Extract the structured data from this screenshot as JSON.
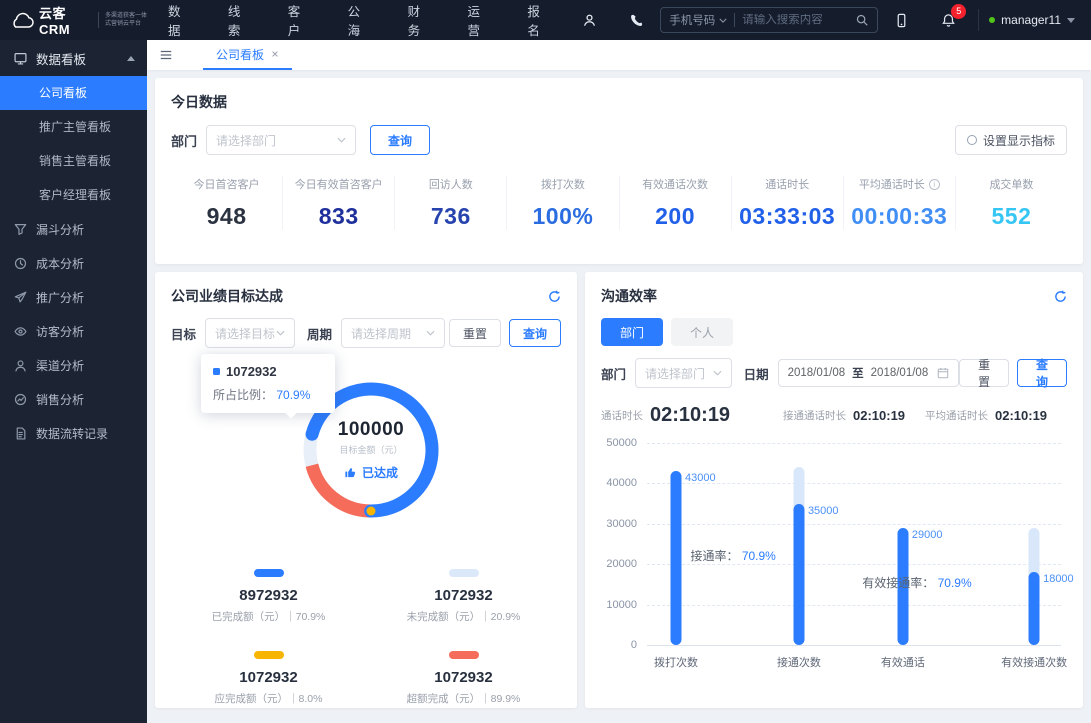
{
  "colors": {
    "accent": "#2b7cff",
    "badge_red": "#f5222d",
    "online_green": "#52c41a"
  },
  "brand": {
    "name": "云客CRM",
    "tagline_line1": "多渠道获客一体",
    "tagline_line2": "式营销云平台"
  },
  "nav": {
    "menu": [
      "数据",
      "线索",
      "客户",
      "公海",
      "财务",
      "运营",
      "报名"
    ],
    "search_category": "手机号码",
    "search_placeholder": "请输入搜索内容",
    "notification_count": "5",
    "username": "manager11"
  },
  "sidebar": {
    "group_label": "数据看板",
    "sub_items": [
      {
        "label": "公司看板",
        "active": true
      },
      {
        "label": "推广主管看板",
        "active": false
      },
      {
        "label": "销售主管看板",
        "active": false
      },
      {
        "label": "客户经理看板",
        "active": false
      }
    ],
    "items": [
      {
        "label": "漏斗分析",
        "icon": "funnel-icon"
      },
      {
        "label": "成本分析",
        "icon": "clock-icon"
      },
      {
        "label": "推广分析",
        "icon": "promote-icon"
      },
      {
        "label": "访客分析",
        "icon": "visitor-icon"
      },
      {
        "label": "渠道分析",
        "icon": "channel-icon"
      },
      {
        "label": "销售分析",
        "icon": "sales-icon"
      },
      {
        "label": "数据流转记录",
        "icon": "record-icon"
      }
    ]
  },
  "tabbar": {
    "active_tab": "公司看板"
  },
  "today": {
    "title": "今日数据",
    "dept_label": "部门",
    "dept_placeholder": "请选择部门",
    "query_label": "查询",
    "settings_label": "设置显示指标",
    "stats": [
      {
        "label": "今日首咨客户",
        "value": "948",
        "color": "#2b3240",
        "info": false
      },
      {
        "label": "今日有效首咨客户",
        "value": "833",
        "color": "#1f2f9c",
        "info": false
      },
      {
        "label": "回访人数",
        "value": "736",
        "color": "#2743ae",
        "info": false
      },
      {
        "label": "拨打次数",
        "value": "100%",
        "color": "#2b6de0",
        "info": false
      },
      {
        "label": "有效通话次数",
        "value": "200",
        "color": "#2160e8",
        "info": false
      },
      {
        "label": "通话时长",
        "value": "03:33:03",
        "color": "#2160e8",
        "info": false
      },
      {
        "label": "平均通话时长",
        "value": "00:00:33",
        "color": "#418ef5",
        "info": true
      },
      {
        "label": "成交单数",
        "value": "552",
        "color": "#36c6f4",
        "info": false
      }
    ]
  },
  "target_panel": {
    "title": "公司业绩目标达成",
    "goal_label": "目标",
    "goal_placeholder": "请选择目标",
    "period_label": "周期",
    "period_placeholder": "请选择周期",
    "reset_label": "重置",
    "query_label": "查询",
    "tooltip": {
      "value": "1072932",
      "label": "所占比例：",
      "percent": "70.9%"
    },
    "center_value": "100000",
    "center_label": "目标金额（元）",
    "achieved_label": "已达成",
    "legend": [
      {
        "color": "#2b7cff",
        "value": "8972932",
        "caption": "已完成额（元）｜70.9%"
      },
      {
        "color": "#dbe8fa",
        "value": "1072932",
        "caption": "未完成额（元）｜20.9%"
      },
      {
        "color": "#f7b500",
        "value": "1072932",
        "caption": "应完成额（元）｜8.0%"
      },
      {
        "color": "#f56c5b",
        "value": "1072932",
        "caption": "超额完成（元）｜89.9%"
      }
    ]
  },
  "comm_panel": {
    "title": "沟通效率",
    "toggle": [
      {
        "label": "部门",
        "active": true
      },
      {
        "label": "个人",
        "active": false
      }
    ],
    "dept_label": "部门",
    "dept_placeholder": "请选择部门",
    "date_label": "日期",
    "date_from": "2018/01/08",
    "date_sep": "至",
    "date_to": "2018/01/08",
    "reset_label": "重置",
    "query_label": "查询",
    "stats": [
      {
        "label": "通话时长",
        "value": "02:10:19",
        "big": true
      },
      {
        "label": "接通通话时长",
        "value": "02:10:19",
        "big": false
      },
      {
        "label": "平均通话时长",
        "value": "02:10:19",
        "big": false
      }
    ]
  },
  "chart_data": [
    {
      "type": "pie",
      "title": "公司业绩目标达成",
      "center_value": 100000,
      "center_label": "目标金额（元）",
      "slices": [
        {
          "name": "已完成额（元）",
          "value": 8972932,
          "percent": 70.9,
          "color": "#2b7cff"
        },
        {
          "name": "未完成额（元）",
          "value": 1072932,
          "percent": 20.9,
          "color": "#dbe8fa"
        },
        {
          "name": "应完成额（元）",
          "value": 1072932,
          "percent": 8.0,
          "color": "#f7b500"
        },
        {
          "name": "超额完成（元）",
          "value": 1072932,
          "percent": 89.9,
          "color": "#f56c5b"
        }
      ],
      "arc_color_secondary": "#f56c5b"
    },
    {
      "type": "bar",
      "title": "沟通效率",
      "categories": [
        "拨打次数",
        "接通次数",
        "有效通话",
        "有效接通次数"
      ],
      "values": [
        43000,
        35000,
        29000,
        18000
      ],
      "tracks": [
        null,
        44000,
        null,
        29000
      ],
      "ylim": [
        0,
        50000
      ],
      "yticks": [
        0,
        10000,
        20000,
        30000,
        40000,
        50000
      ],
      "bar_color": "#2b7cff",
      "track_color": "#d8e7fa",
      "grid": "dashed",
      "annotations": [
        {
          "label": "接通率：",
          "value": "70.9%"
        },
        {
          "label": "有效接通率：",
          "value": "70.9%"
        }
      ]
    }
  ]
}
